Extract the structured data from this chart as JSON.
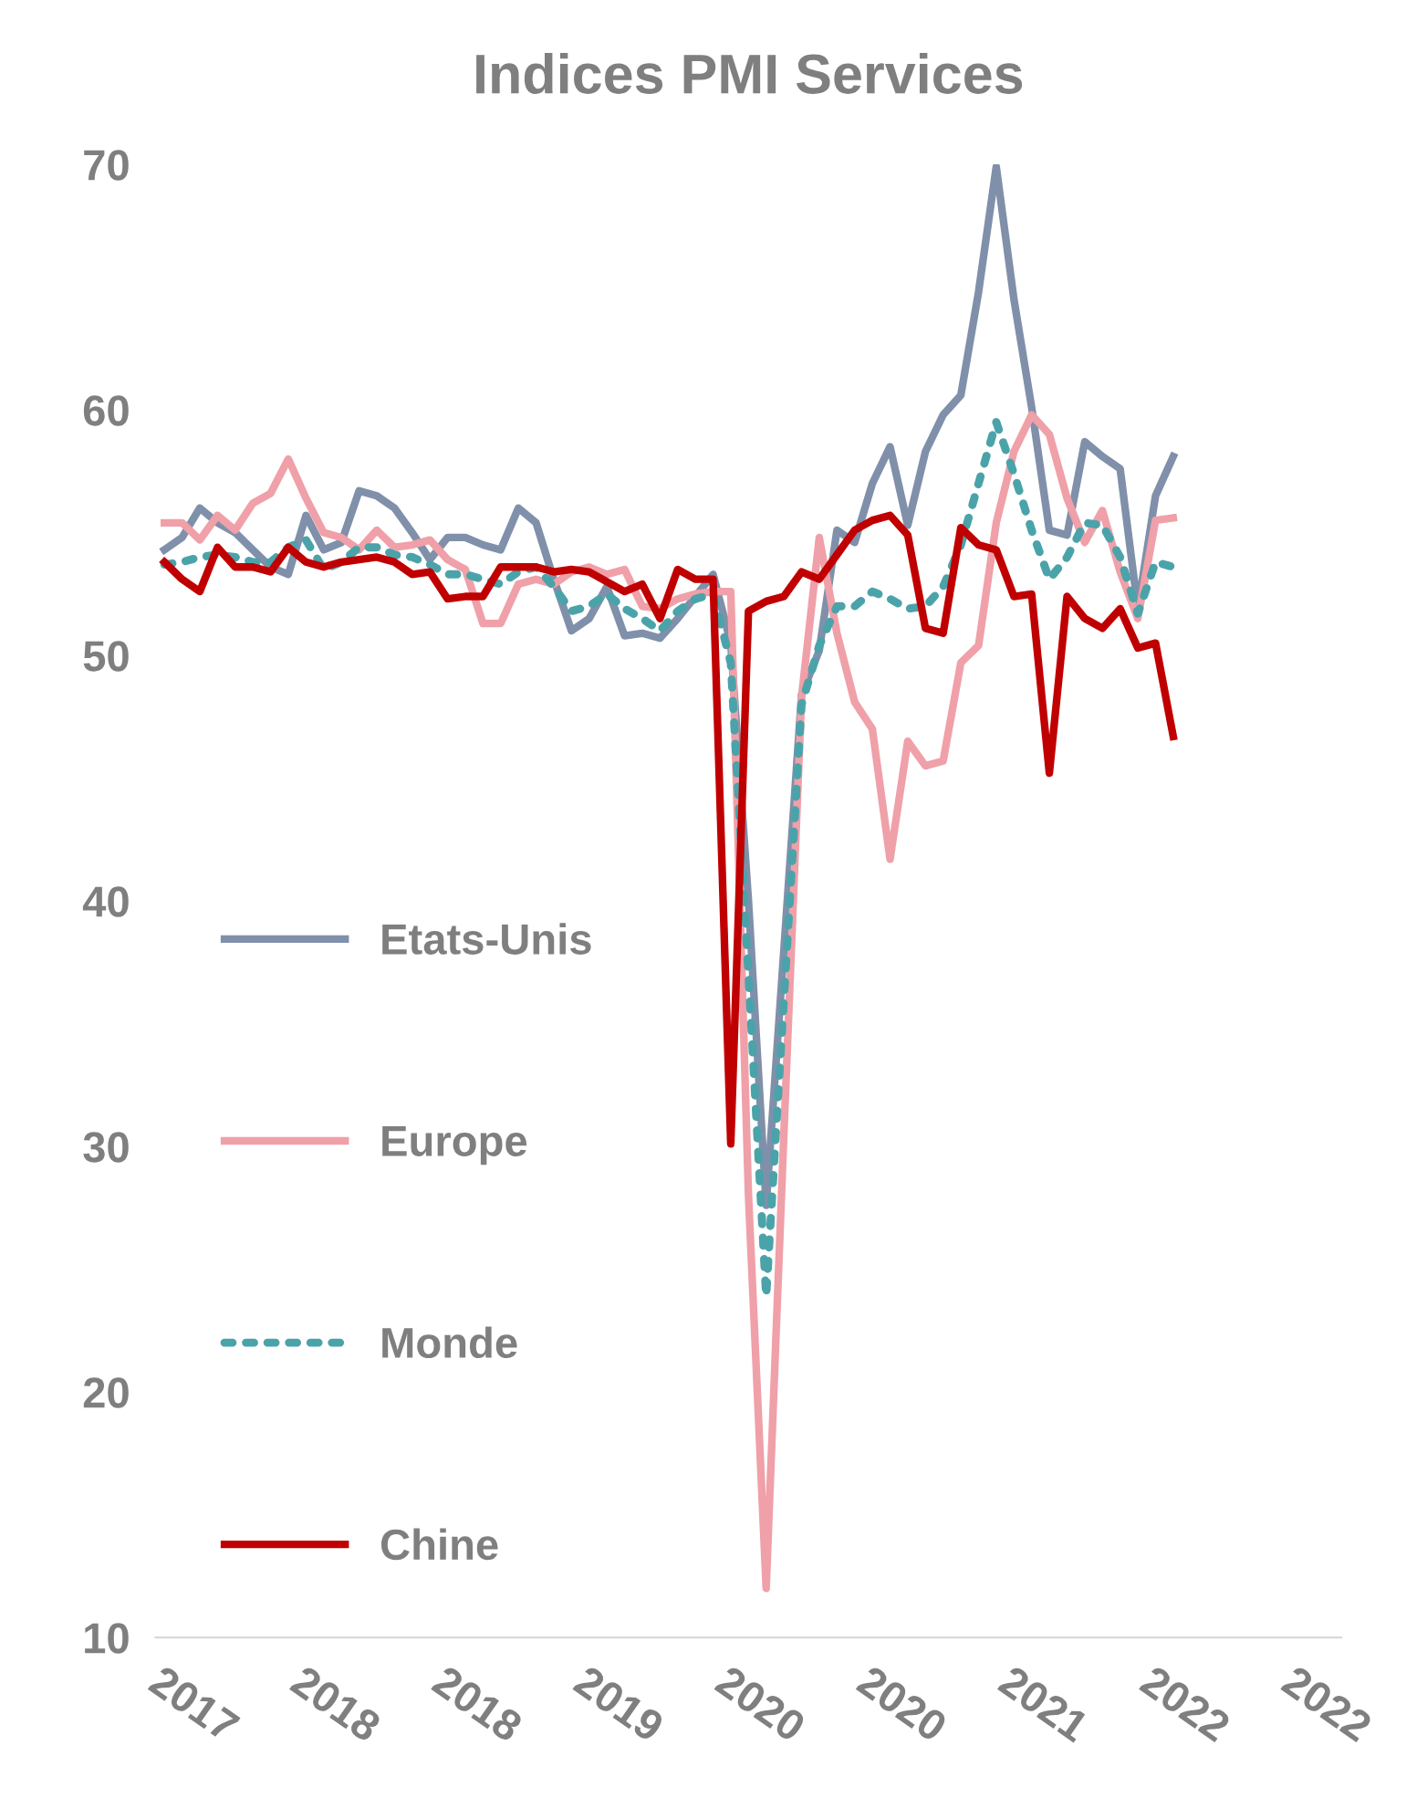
{
  "chart_data": {
    "type": "line",
    "title": "Indices PMI Services",
    "categories": [
      "2017",
      null,
      null,
      null,
      null,
      null,
      null,
      null,
      "2018",
      null,
      null,
      null,
      null,
      null,
      null,
      null,
      "2018",
      null,
      null,
      null,
      null,
      null,
      null,
      null,
      "2019",
      null,
      null,
      null,
      null,
      null,
      null,
      null,
      "2020",
      null,
      null,
      null,
      null,
      null,
      null,
      null,
      "2020",
      null,
      null,
      null,
      null,
      null,
      null,
      null,
      "2021",
      null,
      null,
      null,
      null,
      null,
      null,
      null,
      "2022",
      null,
      null,
      null,
      null,
      null,
      null,
      null,
      "2022",
      null,
      null
    ],
    "series": [
      {
        "name": "Etats-Unis",
        "color": "#8090aa",
        "line_style": "solid",
        "values": [
          54.3,
          54.8,
          56.0,
          55.4,
          55.0,
          54.3,
          53.6,
          53.3,
          55.7,
          54.3,
          54.6,
          56.7,
          56.5,
          56.0,
          55.0,
          53.9,
          54.8,
          54.8,
          54.5,
          54.3,
          56.0,
          55.4,
          53.1,
          51.0,
          51.5,
          52.8,
          50.8,
          50.9,
          50.7,
          51.5,
          52.4,
          53.3,
          50.5,
          40.0,
          27.6,
          38.0,
          48.4,
          50.2,
          55.1,
          54.6,
          57.0,
          58.5,
          55.3,
          58.3,
          59.8,
          60.6,
          64.8,
          69.9,
          64.5,
          60.1,
          55.1,
          54.9,
          58.7,
          58.1,
          57.6,
          51.9,
          56.5,
          58.1,
          null,
          null,
          null,
          null,
          null,
          null,
          null,
          null,
          null
        ]
      },
      {
        "name": "Europe",
        "color": "#f0a0a8",
        "line_style": "solid",
        "values": [
          55.4,
          55.4,
          54.7,
          55.7,
          55.1,
          56.2,
          56.6,
          58.0,
          56.4,
          55.0,
          54.8,
          54.3,
          55.1,
          54.4,
          54.5,
          54.7,
          53.9,
          53.5,
          51.3,
          51.3,
          52.9,
          53.1,
          52.9,
          53.4,
          53.6,
          53.3,
          53.5,
          52.0,
          51.9,
          52.3,
          52.5,
          52.6,
          52.6,
          28.0,
          12.0,
          30.5,
          48.3,
          54.8,
          50.9,
          48.1,
          47.0,
          41.7,
          46.5,
          45.5,
          45.7,
          49.7,
          50.4,
          55.4,
          58.3,
          59.8,
          59.0,
          56.4,
          54.6,
          55.9,
          53.4,
          51.5,
          55.5,
          55.6,
          null,
          null,
          null,
          null,
          null,
          null,
          null,
          null,
          null
        ]
      },
      {
        "name": "Monde",
        "color": "#4ba3aa",
        "line_style": "dotted",
        "values": [
          53.7,
          53.8,
          54.0,
          54.1,
          54.0,
          53.8,
          53.8,
          54.4,
          54.7,
          53.5,
          53.8,
          54.4,
          54.4,
          54.1,
          54.0,
          53.7,
          53.3,
          53.3,
          53.1,
          52.9,
          53.4,
          53.6,
          52.8,
          51.8,
          52.0,
          52.5,
          51.9,
          51.5,
          51.0,
          51.8,
          52.3,
          52.5,
          49.7,
          37.0,
          23.9,
          36.0,
          48.0,
          50.4,
          52.0,
          52.0,
          52.6,
          52.3,
          51.9,
          52.0,
          52.8,
          54.5,
          57.0,
          59.5,
          57.4,
          55.1,
          53.1,
          54.0,
          55.4,
          55.3,
          54.0,
          51.7,
          53.8,
          53.6,
          null,
          null,
          null,
          null,
          null,
          null,
          null,
          null,
          null
        ]
      },
      {
        "name": "Chine",
        "color": "#c00000",
        "line_style": "solid",
        "values": [
          53.8,
          53.1,
          52.6,
          54.4,
          53.6,
          53.6,
          53.4,
          54.4,
          53.8,
          53.6,
          53.8,
          53.9,
          54.0,
          53.8,
          53.3,
          53.4,
          52.3,
          52.4,
          52.4,
          53.6,
          53.6,
          53.6,
          53.4,
          53.5,
          53.4,
          53.0,
          52.6,
          52.9,
          51.5,
          53.5,
          53.1,
          53.1,
          30.1,
          51.8,
          52.2,
          52.4,
          53.4,
          53.1,
          54.1,
          55.1,
          55.5,
          55.7,
          54.9,
          51.1,
          50.9,
          55.2,
          54.5,
          54.3,
          52.4,
          52.5,
          45.2,
          52.4,
          51.5,
          51.1,
          51.9,
          50.3,
          50.5,
          46.7,
          null,
          null,
          null,
          null,
          null,
          null,
          null,
          null,
          null
        ]
      }
    ],
    "ylim": [
      10,
      70
    ],
    "yticks": [
      10,
      20,
      30,
      40,
      50,
      60,
      70
    ],
    "grid": false,
    "legend": "bottom left",
    "marker": "none"
  }
}
